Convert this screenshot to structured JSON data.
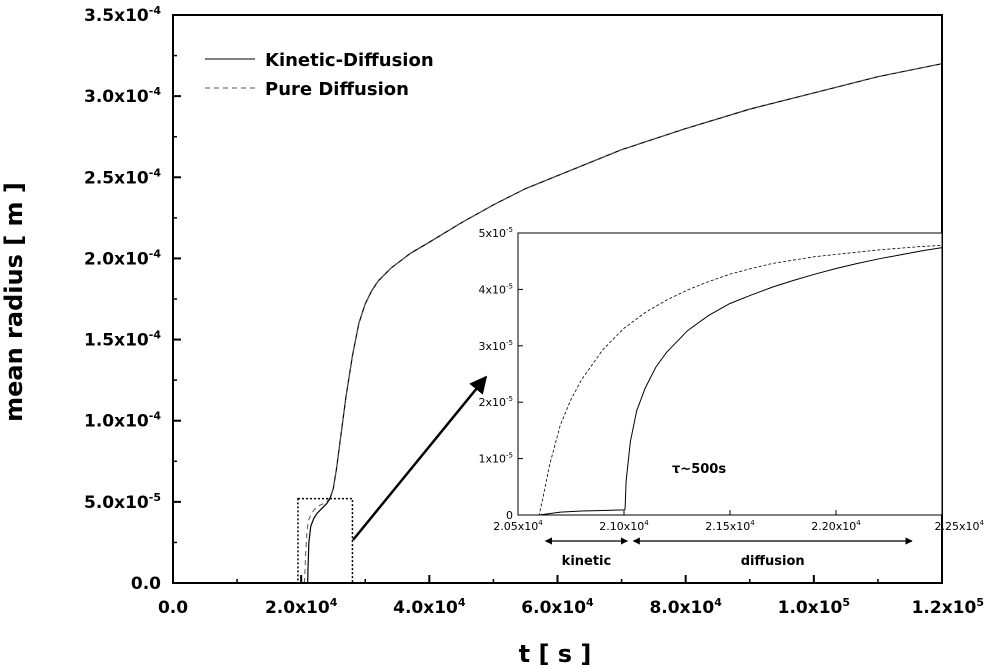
{
  "chart_data": [
    {
      "type": "line",
      "name": "main",
      "xlabel": "t [ s ]",
      "ylabel": "mean radius [ m ]",
      "xlim": [
        0,
        120000
      ],
      "ylim": [
        0,
        0.00035
      ],
      "xticks": [
        {
          "value": 0,
          "mant": "0.0",
          "exp": ""
        },
        {
          "value": 20000,
          "mant": "2.0x10",
          "exp": "4"
        },
        {
          "value": 40000,
          "mant": "4.0x10",
          "exp": "4"
        },
        {
          "value": 60000,
          "mant": "6.0x10",
          "exp": "4"
        },
        {
          "value": 80000,
          "mant": "8.0x10",
          "exp": "4"
        },
        {
          "value": 100000,
          "mant": "1.0x10",
          "exp": "5"
        },
        {
          "value": 120000,
          "mant": "1.2x10",
          "exp": "5"
        }
      ],
      "yticks": [
        {
          "value": 0,
          "mant": "0.0",
          "exp": ""
        },
        {
          "value": 5e-05,
          "mant": "5.0x10",
          "exp": "-5"
        },
        {
          "value": 0.0001,
          "mant": "1.0x10",
          "exp": "-4"
        },
        {
          "value": 0.00015,
          "mant": "1.5x10",
          "exp": "-4"
        },
        {
          "value": 0.0002,
          "mant": "2.0x10",
          "exp": "-4"
        },
        {
          "value": 0.00025,
          "mant": "2.5x10",
          "exp": "-4"
        },
        {
          "value": 0.0003,
          "mant": "3.0x10",
          "exp": "-4"
        },
        {
          "value": 0.00035,
          "mant": "3.5x10",
          "exp": "-4"
        }
      ],
      "legend": {
        "placement": "top-left",
        "entries": [
          "Kinetic-Diffusion",
          "Pure Diffusion"
        ]
      },
      "series": [
        {
          "name": "Kinetic-Diffusion",
          "style": "solid",
          "x": [
            20500,
            20900,
            21000,
            21020,
            21060,
            21200,
            21500,
            22000,
            22500,
            23000,
            23500,
            24000,
            24500,
            25000,
            25500,
            26000,
            26500,
            27000,
            28000,
            29000,
            30000,
            31000,
            32000,
            33000,
            34000,
            35000,
            37000,
            40000,
            45000,
            50000,
            55000,
            60000,
            70000,
            80000,
            90000,
            100000,
            110000,
            120000
          ],
          "y": [
            0,
            0,
            5e-07,
            1e-06,
            8e-06,
            2.5e-05,
            3.5e-05,
            4e-05,
            4.3e-05,
            4.5e-05,
            4.7e-05,
            4.9e-05,
            5.2e-05,
            5.8e-05,
            7e-05,
            8.5e-05,
            0.0001,
            0.000115,
            0.00014,
            0.00016,
            0.000172,
            0.00018,
            0.000186,
            0.00019,
            0.000194,
            0.000197,
            0.000203,
            0.00021,
            0.000222,
            0.000233,
            0.000243,
            0.000251,
            0.000267,
            0.00028,
            0.000292,
            0.000302,
            0.000312,
            0.00032
          ]
        },
        {
          "name": "Pure Diffusion",
          "style": "dashed",
          "x": [
            20500,
            20600,
            20700,
            20900,
            21100,
            21500,
            22000,
            22500,
            23000,
            23500,
            24000,
            24500,
            25000,
            25500,
            26000,
            26500,
            27000,
            28000,
            29000,
            30000,
            31000,
            32000,
            33000,
            34000,
            35000,
            37000,
            40000,
            45000,
            50000,
            55000,
            60000,
            70000,
            80000,
            90000,
            100000,
            110000,
            120000
          ],
          "y": [
            0,
            8e-06,
            1.8e-05,
            3.1e-05,
            3.8e-05,
            4.2e-05,
            4.5e-05,
            4.7e-05,
            4.8e-05,
            4.9e-05,
            5e-05,
            5.3e-05,
            5.8e-05,
            7e-05,
            8.5e-05,
            0.0001,
            0.000115,
            0.00014,
            0.00016,
            0.000172,
            0.00018,
            0.000186,
            0.00019,
            0.000194,
            0.000197,
            0.000203,
            0.00021,
            0.000222,
            0.000233,
            0.000243,
            0.000251,
            0.000267,
            0.00028,
            0.000292,
            0.000302,
            0.000312,
            0.00032
          ]
        }
      ],
      "annotations": {
        "zoom_box": {
          "x": [
            19500,
            28000
          ],
          "y": [
            0,
            5.2e-05
          ]
        }
      }
    },
    {
      "type": "line",
      "name": "inset",
      "xlim": [
        20500,
        22500
      ],
      "ylim": [
        0,
        5e-05
      ],
      "xticks": [
        {
          "value": 20500,
          "mant": "2.05x10",
          "exp": "4"
        },
        {
          "value": 21000,
          "mant": "2.10x10",
          "exp": "4"
        },
        {
          "value": 21500,
          "mant": "2.15x10",
          "exp": "4"
        },
        {
          "value": 22000,
          "mant": "2.20x10",
          "exp": "4"
        },
        {
          "value": 22500,
          "mant": "2.25x10",
          "exp": "4"
        }
      ],
      "yticks": [
        {
          "value": 0,
          "mant": "0",
          "exp": ""
        },
        {
          "value": 1e-05,
          "mant": "1x10",
          "exp": "-5"
        },
        {
          "value": 2e-05,
          "mant": "2x10",
          "exp": "-5"
        },
        {
          "value": 3e-05,
          "mant": "3x10",
          "exp": "-5"
        },
        {
          "value": 4e-05,
          "mant": "4x10",
          "exp": "-5"
        },
        {
          "value": 5e-05,
          "mant": "5x10",
          "exp": "-5"
        }
      ],
      "series": [
        {
          "name": "Kinetic-Diffusion",
          "style": "solid",
          "x": [
            20500,
            20600,
            20700,
            20800,
            20900,
            21000,
            21005,
            21010,
            21030,
            21060,
            21100,
            21150,
            21200,
            21300,
            21400,
            21500,
            21600,
            21700,
            21800,
            21900,
            22000,
            22100,
            22200,
            22300,
            22400,
            22500
          ],
          "y": [
            0,
            0,
            5e-07,
            7e-07,
            8e-07,
            9e-07,
            1e-06,
            6e-06,
            1.3e-05,
            1.85e-05,
            2.25e-05,
            2.62e-05,
            2.88e-05,
            3.27e-05,
            3.54e-05,
            3.75e-05,
            3.9e-05,
            4.04e-05,
            4.16e-05,
            4.27e-05,
            4.37e-05,
            4.46e-05,
            4.54e-05,
            4.61e-05,
            4.68e-05,
            4.74e-05
          ]
        },
        {
          "name": "Pure Diffusion",
          "style": "dashed",
          "x": [
            20500,
            20600,
            20620,
            20650,
            20700,
            20750,
            20800,
            20900,
            21000,
            21100,
            21200,
            21300,
            21400,
            21500,
            21600,
            21700,
            21800,
            21900,
            22000,
            22100,
            22200,
            22300,
            22400,
            22500
          ],
          "y": [
            0,
            0,
            3.5e-06,
            9e-06,
            1.6e-05,
            2.05e-05,
            2.4e-05,
            2.93e-05,
            3.31e-05,
            3.59e-05,
            3.81e-05,
            3.99e-05,
            4.14e-05,
            4.27e-05,
            4.37e-05,
            4.46e-05,
            4.52e-05,
            4.58e-05,
            4.62e-05,
            4.66e-05,
            4.7e-05,
            4.73e-05,
            4.76e-05,
            4.78e-05
          ]
        }
      ],
      "annotations": {
        "tau_label": "τ~500s",
        "kinetic_label": "kinetic",
        "diffusion_label": "diffusion",
        "kinetic_range": [
          20630,
          21030
        ],
        "diffusion_range": [
          21030,
          22500
        ]
      }
    }
  ]
}
